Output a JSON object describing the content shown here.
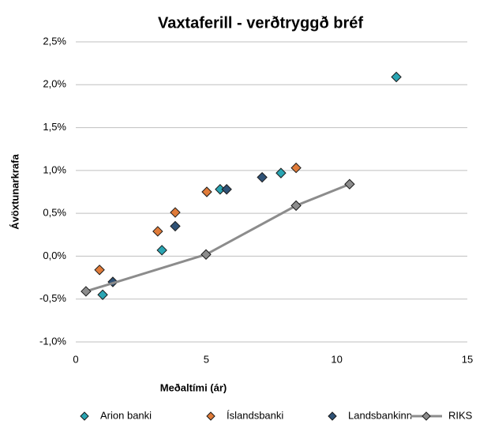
{
  "chart_data": {
    "type": "scatter",
    "title": "Vaxtaferill - verðtryggð bréf",
    "xlabel": "Meðaltími (ár)",
    "ylabel": "Ávöxtunarkrafa",
    "xlim": [
      0,
      15
    ],
    "xticks": [
      0,
      5,
      10,
      15
    ],
    "ylim": [
      -1.0,
      2.5
    ],
    "yticks": [
      {
        "value": -1.0,
        "label": "-1,0%"
      },
      {
        "value": -0.5,
        "label": "-0,5%"
      },
      {
        "value": 0.0,
        "label": "0,0%"
      },
      {
        "value": 0.5,
        "label": "0,5%"
      },
      {
        "value": 1.0,
        "label": "1,0%"
      },
      {
        "value": 1.5,
        "label": "1,5%"
      },
      {
        "value": 2.0,
        "label": "2,0%"
      },
      {
        "value": 2.5,
        "label": "2,5%"
      }
    ],
    "grid": true,
    "legend": "bottom",
    "series": [
      {
        "name": "Arion banki",
        "color": "#2aa5b3",
        "line": false,
        "x": [
          1.03,
          3.3,
          5.53,
          7.86,
          12.28
        ],
        "values": [
          -0.45,
          0.07,
          0.78,
          0.97,
          2.09
        ]
      },
      {
        "name": "Íslandsbanki",
        "color": "#e07b39",
        "line": false,
        "x": [
          0.91,
          3.14,
          3.81,
          5.02,
          8.44
        ],
        "values": [
          -0.16,
          0.29,
          0.51,
          0.75,
          1.03
        ]
      },
      {
        "name": "Landsbankinn",
        "color": "#2f5276",
        "line": false,
        "x": [
          1.42,
          3.81,
          5.78,
          7.14
        ],
        "values": [
          -0.3,
          0.35,
          0.78,
          0.92
        ]
      },
      {
        "name": "RIKS",
        "color": "#8c8c8c",
        "line": true,
        "x": [
          0.39,
          4.99,
          8.44,
          10.49
        ],
        "values": [
          -0.41,
          0.02,
          0.59,
          0.84
        ]
      }
    ]
  }
}
